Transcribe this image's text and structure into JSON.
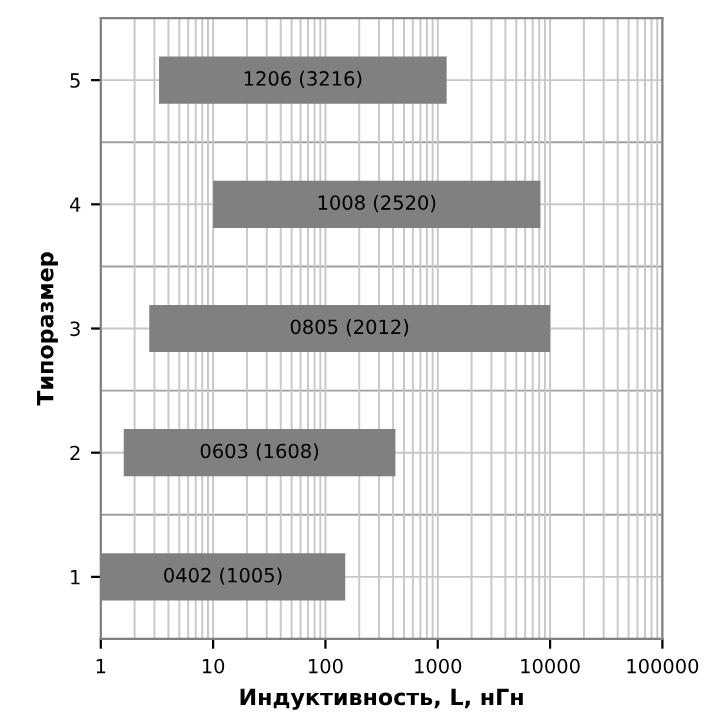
{
  "chart_data": {
    "type": "bar",
    "orientation": "horizontal",
    "xlabel": "Индуктивность, L, нГн",
    "ylabel": "Типоразмер",
    "categories": [
      "5",
      "4",
      "3",
      "2",
      "1"
    ],
    "base": [
      3.3,
      10,
      2.7,
      1.6,
      1
    ],
    "values": [
      1196.7,
      8190,
      9997.3,
      418.4,
      149
    ],
    "annotations": [
      "1206 (3216)",
      "1008 (2520)",
      "0805 (2012)",
      "0603 (1608)",
      "0402 (1005)"
    ],
    "color": "#808080",
    "log": "x",
    "xlim": [
      1,
      100000
    ],
    "xticks": [
      1,
      10,
      100,
      1000,
      10000,
      100000
    ],
    "grid": true
  }
}
